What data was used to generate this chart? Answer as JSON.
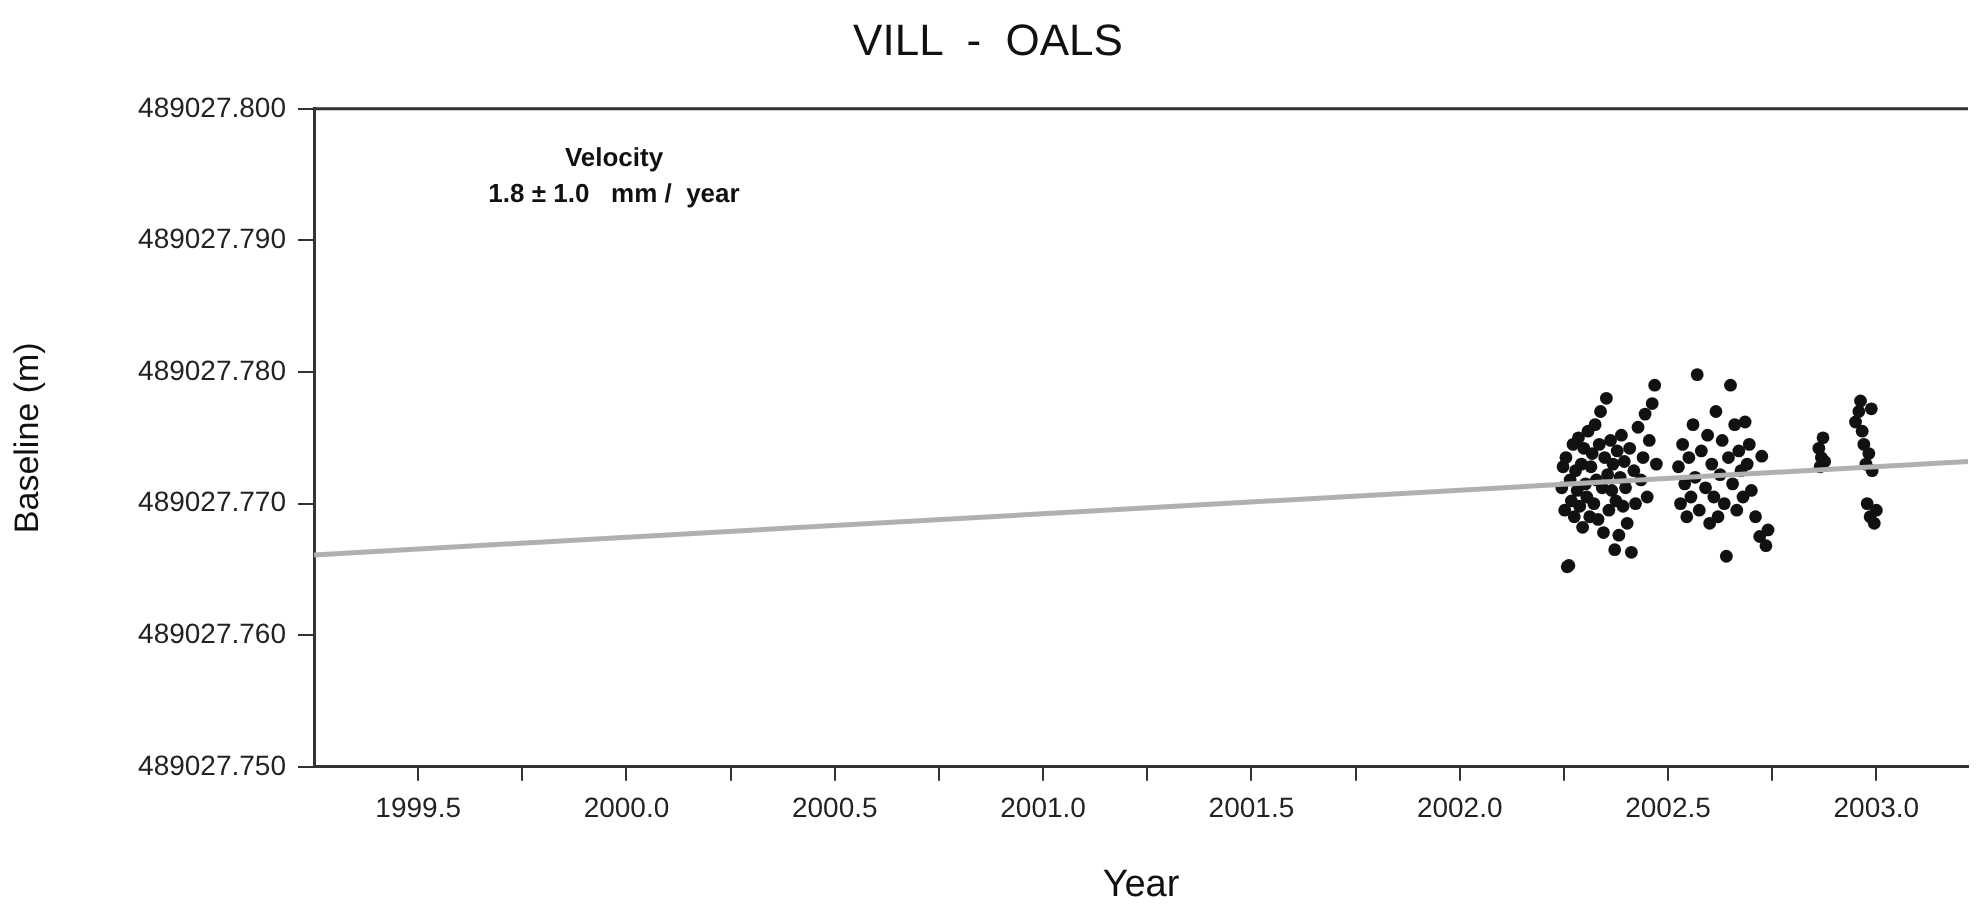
{
  "chart_data": {
    "type": "scatter",
    "title": "VILL  -  OALS",
    "xlabel": "Year",
    "ylabel": "Baseline (m)",
    "annotations": [
      "Velocity",
      "1.8 ± 1.0   mm /  year"
    ],
    "xlim": [
      1999.25,
      2003.22
    ],
    "xticks": [
      {
        "value": 1999.5,
        "label": "1999.5"
      },
      {
        "value": 1999.75,
        "label": null
      },
      {
        "value": 2000.0,
        "label": "2000.0"
      },
      {
        "value": 2000.25,
        "label": null
      },
      {
        "value": 2000.5,
        "label": "2000.5"
      },
      {
        "value": 2000.75,
        "label": null
      },
      {
        "value": 2001.0,
        "label": "2001.0"
      },
      {
        "value": 2001.25,
        "label": null
      },
      {
        "value": 2001.5,
        "label": "2001.5"
      },
      {
        "value": 2001.75,
        "label": null
      },
      {
        "value": 2002.0,
        "label": "2002.0"
      },
      {
        "value": 2002.25,
        "label": null
      },
      {
        "value": 2002.5,
        "label": "2002.5"
      },
      {
        "value": 2002.75,
        "label": null
      },
      {
        "value": 2003.0,
        "label": "2003.0"
      }
    ],
    "ylim": [
      489027.75,
      489027.8
    ],
    "yticks": [
      {
        "value": 489027.75,
        "label": "489027.750"
      },
      {
        "value": 489027.76,
        "label": "489027.760"
      },
      {
        "value": 489027.77,
        "label": "489027.770"
      },
      {
        "value": 489027.78,
        "label": "489027.780"
      },
      {
        "value": 489027.79,
        "label": "489027.790"
      },
      {
        "value": 489027.8,
        "label": "489027.800"
      }
    ],
    "grid": false,
    "legend": false,
    "marker": "circle",
    "series": [
      {
        "type": "line",
        "marker": "none",
        "color": "#b0b0b0",
        "x": [
          1999.25,
          2003.22
        ],
        "values": [
          489027.7661,
          489027.7732
        ]
      },
      {
        "color": "#111111",
        "x": [
          2002.245,
          2002.248,
          2002.252,
          2002.255,
          2002.258,
          2002.262,
          2002.265,
          2002.268,
          2002.272,
          2002.275,
          2002.278,
          2002.282,
          2002.285,
          2002.288,
          2002.292,
          2002.295,
          2002.298,
          2002.302,
          2002.305,
          2002.308,
          2002.312,
          2002.315,
          2002.318,
          2002.322,
          2002.325,
          2002.328,
          2002.332,
          2002.335,
          2002.338,
          2002.342,
          2002.345,
          2002.348,
          2002.352,
          2002.355,
          2002.358,
          2002.362,
          2002.365,
          2002.368,
          2002.372,
          2002.375,
          2002.378,
          2002.382,
          2002.385,
          2002.388,
          2002.392,
          2002.395,
          2002.398,
          2002.402,
          2002.408,
          2002.412,
          2002.418,
          2002.422,
          2002.428,
          2002.435,
          2002.44,
          2002.445,
          2002.45,
          2002.455,
          2002.462,
          2002.468,
          2002.472,
          2002.525,
          2002.53,
          2002.535,
          2002.54,
          2002.545,
          2002.55,
          2002.555,
          2002.56,
          2002.565,
          2002.57,
          2002.575,
          2002.58,
          2002.59,
          2002.595,
          2002.6,
          2002.605,
          2002.61,
          2002.615,
          2002.62,
          2002.625,
          2002.63,
          2002.635,
          2002.64,
          2002.645,
          2002.65,
          2002.655,
          2002.66,
          2002.665,
          2002.67,
          2002.675,
          2002.68,
          2002.685,
          2002.69,
          2002.695,
          2002.7,
          2002.71,
          2002.72,
          2002.725,
          2002.735,
          2002.74,
          2002.862,
          2002.865,
          2002.868,
          2002.872,
          2002.876,
          2002.95,
          2002.958,
          2002.962,
          2002.966,
          2002.97,
          2002.975,
          2002.978,
          2002.982,
          2002.985,
          2002.988,
          2002.99,
          2002.995,
          2003.0
        ],
        "values": [
          489027.7712,
          489027.7728,
          489027.7695,
          489027.7735,
          489027.7652,
          489027.7653,
          489027.7718,
          489027.7702,
          489027.7745,
          489027.769,
          489027.7725,
          489027.771,
          489027.775,
          489027.7698,
          489027.773,
          489027.7682,
          489027.7742,
          489027.7715,
          489027.7705,
          489027.7755,
          489027.769,
          489027.7728,
          489027.7738,
          489027.77,
          489027.776,
          489027.7718,
          489027.7688,
          489027.7745,
          489027.777,
          489027.7712,
          489027.7678,
          489027.7735,
          489027.778,
          489027.7722,
          489027.7695,
          489027.7748,
          489027.771,
          489027.773,
          489027.7665,
          489027.7702,
          489027.774,
          489027.7676,
          489027.772,
          489027.7752,
          489027.7698,
          489027.7732,
          489027.7712,
          489027.7685,
          489027.7742,
          489027.7663,
          489027.7725,
          489027.77,
          489027.7758,
          489027.7718,
          489027.7735,
          489027.7768,
          489027.7705,
          489027.7748,
          489027.7776,
          489027.779,
          489027.773,
          489027.7728,
          489027.77,
          489027.7745,
          489027.7715,
          489027.769,
          489027.7735,
          489027.7705,
          489027.776,
          489027.772,
          489027.7798,
          489027.7695,
          489027.774,
          489027.7712,
          489027.7752,
          489027.7685,
          489027.773,
          489027.7705,
          489027.777,
          489027.769,
          489027.7722,
          489027.7748,
          489027.77,
          489027.766,
          489027.7735,
          489027.779,
          489027.7715,
          489027.776,
          489027.7695,
          489027.774,
          489027.7725,
          489027.7705,
          489027.7762,
          489027.773,
          489027.7745,
          489027.771,
          489027.769,
          489027.7675,
          489027.7736,
          489027.7668,
          489027.768,
          489027.7742,
          489027.7728,
          489027.7735,
          489027.775,
          489027.7732,
          489027.7762,
          489027.777,
          489027.7778,
          489027.7755,
          489027.7745,
          489027.773,
          489027.77,
          489027.7738,
          489027.769,
          489027.7772,
          489027.7725,
          489027.7685,
          489027.7695
        ]
      }
    ]
  }
}
